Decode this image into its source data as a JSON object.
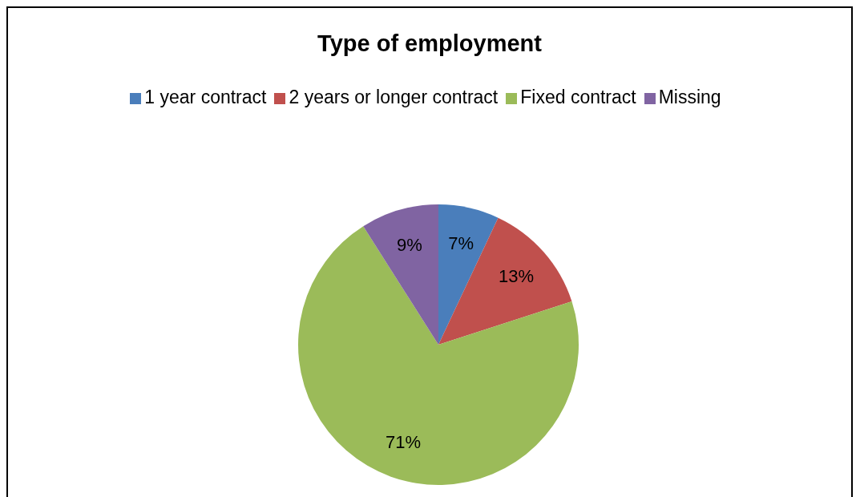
{
  "chart_data": {
    "type": "pie",
    "title": "Type of employment",
    "categories": [
      "1 year contract",
      "2 years or longer contract",
      "Fixed contract",
      "Missing"
    ],
    "values": [
      7,
      13,
      71,
      9
    ],
    "colors": [
      "#4a7ebb",
      "#c0504d",
      "#9bbb59",
      "#8064a2"
    ],
    "value_labels": [
      "7%",
      "13%",
      "71%",
      "9%"
    ],
    "legend": "top"
  }
}
